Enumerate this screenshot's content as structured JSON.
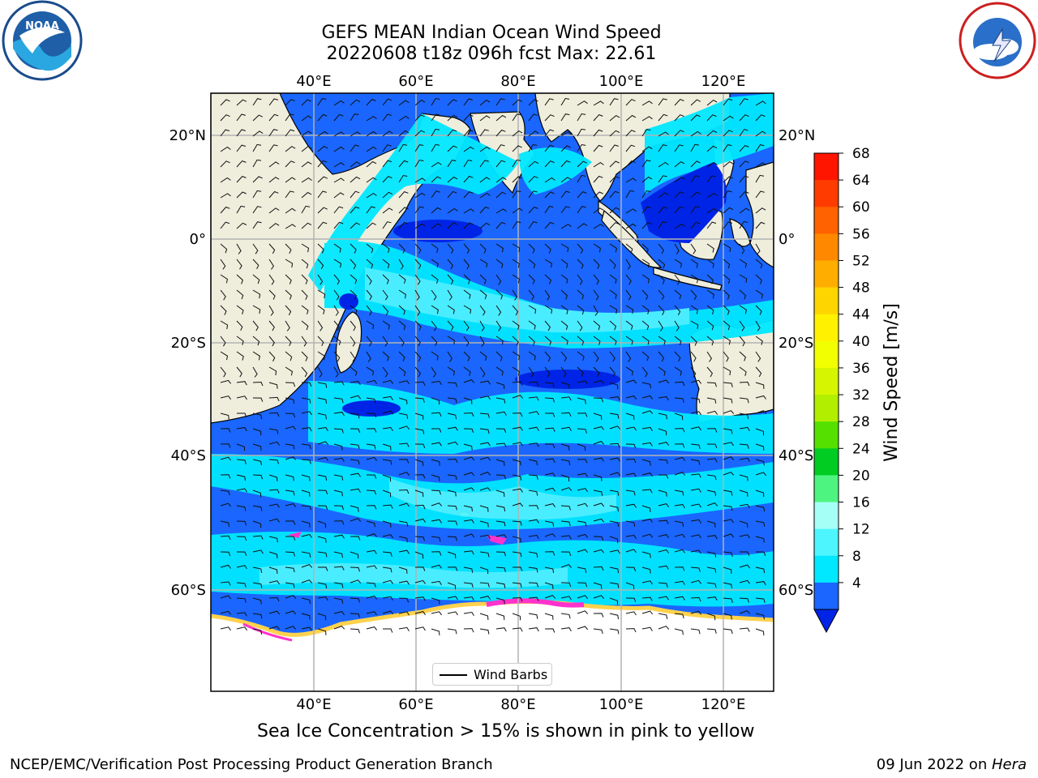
{
  "title": {
    "line1": "GEFS MEAN Indian Ocean Wind Speed",
    "line2": "20220608 t18z 096h fcst   Max: 22.61"
  },
  "map": {
    "top_lon_labels": [
      "40°E",
      "60°E",
      "80°E",
      "100°E",
      "120°E"
    ],
    "bottom_lon_labels": [
      "40°E",
      "60°E",
      "80°E",
      "100°E",
      "120°E"
    ],
    "left_lat_labels": [
      "20°N",
      "0°",
      "20°S",
      "40°S",
      "60°S"
    ],
    "right_lat_labels": [
      "20°N",
      "0°",
      "20°S",
      "40°S",
      "60°S"
    ],
    "legend_label": "Wind Barbs",
    "colors": {
      "land": "#efeddc",
      "ice": "#ffffff",
      "speed_4_8": "#1a66ff",
      "speed_8_12": "#00e8ff",
      "speed_12_16": "#4df5ff",
      "speed_16_20": "#a6fff6",
      "deep_low": "#0024e6",
      "ice_pink": "#ff33cc",
      "ice_yellow": "#ffd24d"
    }
  },
  "colorbar": {
    "label": "Wind Speed [m/s]",
    "ticks": [
      "68",
      "64",
      "60",
      "56",
      "52",
      "48",
      "44",
      "40",
      "36",
      "32",
      "28",
      "24",
      "20",
      "16",
      "12",
      "8",
      "4"
    ],
    "colors": [
      "#ff1500",
      "#ff3b00",
      "#ff6200",
      "#ff8800",
      "#ffae00",
      "#ffd500",
      "#fff100",
      "#f2ff00",
      "#d6f500",
      "#b2ee00",
      "#55e000",
      "#00cc22",
      "#4df580",
      "#a6fff6",
      "#4df5ff",
      "#00e8ff",
      "#1a66ff"
    ],
    "extend_color": "#0024e6"
  },
  "caption": "Sea Ice Concentration > 15% is shown in pink to yellow",
  "footer": {
    "left": "NCEP/EMC/Verification Post Processing Product Generation Branch",
    "date": "09 Jun 2022 on ",
    "host": "Hera"
  },
  "logos": {
    "noaa": "NOAA",
    "nws": "NATIONAL WEATHER SERVICE"
  }
}
